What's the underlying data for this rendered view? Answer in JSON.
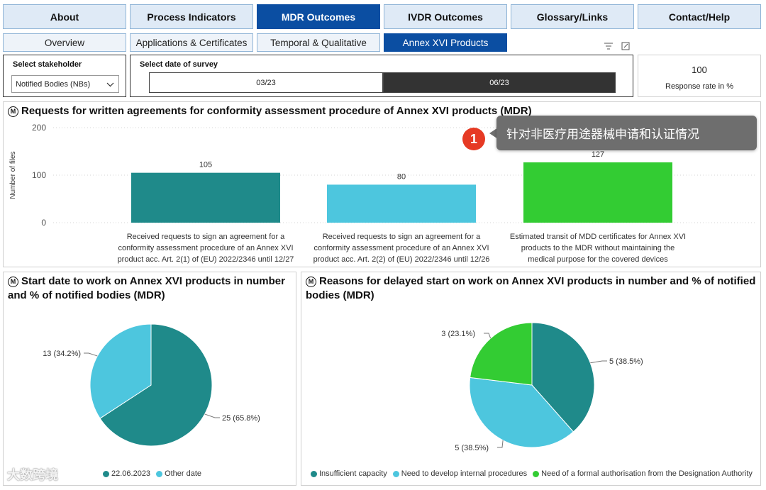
{
  "nav": {
    "tabs": [
      {
        "label": "About",
        "active": false
      },
      {
        "label": "Process Indicators",
        "active": false
      },
      {
        "label": "MDR Outcomes",
        "active": true
      },
      {
        "label": "IVDR Outcomes",
        "active": false
      },
      {
        "label": "Glossary/Links",
        "active": false
      },
      {
        "label": "Contact/Help",
        "active": false
      }
    ],
    "subtabs": [
      {
        "label": "Overview",
        "active": false
      },
      {
        "label": "Applications & Certificates",
        "active": false
      },
      {
        "label": "Temporal & Qualitative",
        "active": false
      },
      {
        "label": "Annex XVI Products",
        "active": true
      }
    ]
  },
  "filters": {
    "stakeholder_label": "Select stakeholder",
    "stakeholder_value": "Notified Bodies (NBs)",
    "date_label": "Select date of survey",
    "dates": [
      "03/23",
      "06/23"
    ],
    "selected_date": "06/23",
    "icons": [
      "filter-icon",
      "focus-mode-icon"
    ]
  },
  "response": {
    "value": "100",
    "label": "Response rate in %"
  },
  "card1": {
    "icon_letter": "M",
    "title": "Requests for written agreements for conformity assessment procedure of Annex XVI products (MDR)",
    "chart_data": {
      "type": "bar",
      "ylabel": "Number of files",
      "ylim": [
        0,
        200
      ],
      "yticks": [
        "0",
        "100",
        "200"
      ],
      "categories": [
        [
          "Received requests to sign an agreement for a",
          "conformity assessment procedure of an Annex XVI",
          "product acc. Art. 2(1) of (EU) 2022/2346 until 12/27"
        ],
        [
          "Received requests to sign an agreement for a",
          "conformity assessment procedure of an Annex XVI",
          "product acc. Art. 2(2) of (EU) 2022/2346 until 12/26"
        ],
        [
          "Estimated transit of MDD certificates for Annex XVI",
          "products to the MDR without maintaining the",
          "medical purpose for the covered devices"
        ]
      ],
      "values": [
        105,
        80,
        127
      ],
      "colors": [
        "#1f8a8a",
        "#4dc6de",
        "#33cc33"
      ]
    }
  },
  "tooltip": {
    "badge": "1",
    "text": "针对非医疗用途器械申请和认证情况"
  },
  "card2": {
    "icon_letter": "M",
    "title_line1": "Start date to work on Annex XVI products in number",
    "title_line2": "and % of notified bodies (MDR)",
    "chart_data": {
      "type": "pie",
      "labels": [
        "22.06.2023",
        "Other date"
      ],
      "values": [
        25,
        13
      ],
      "data_labels": [
        "25 (65.8%)",
        "13 (34.2%)"
      ],
      "colors": [
        "#1f8a8a",
        "#4dc6de"
      ]
    }
  },
  "card3": {
    "icon_letter": "M",
    "title_line1": "Reasons for delayed start on work on Annex XVI products in number and % of notified",
    "title_line2": "bodies (MDR)",
    "chart_data": {
      "type": "pie",
      "labels": [
        "Insufficient capacity",
        "Need to develop internal procedures",
        "Need of a formal authorisation from the Designation Authority"
      ],
      "values": [
        5,
        5,
        3
      ],
      "data_labels": [
        "5 (38.5%)",
        "5 (38.5%)",
        "3 (23.1%)"
      ],
      "colors": [
        "#1f8a8a",
        "#4dc6de",
        "#33cc33"
      ]
    }
  },
  "watermark": "大数跨境"
}
